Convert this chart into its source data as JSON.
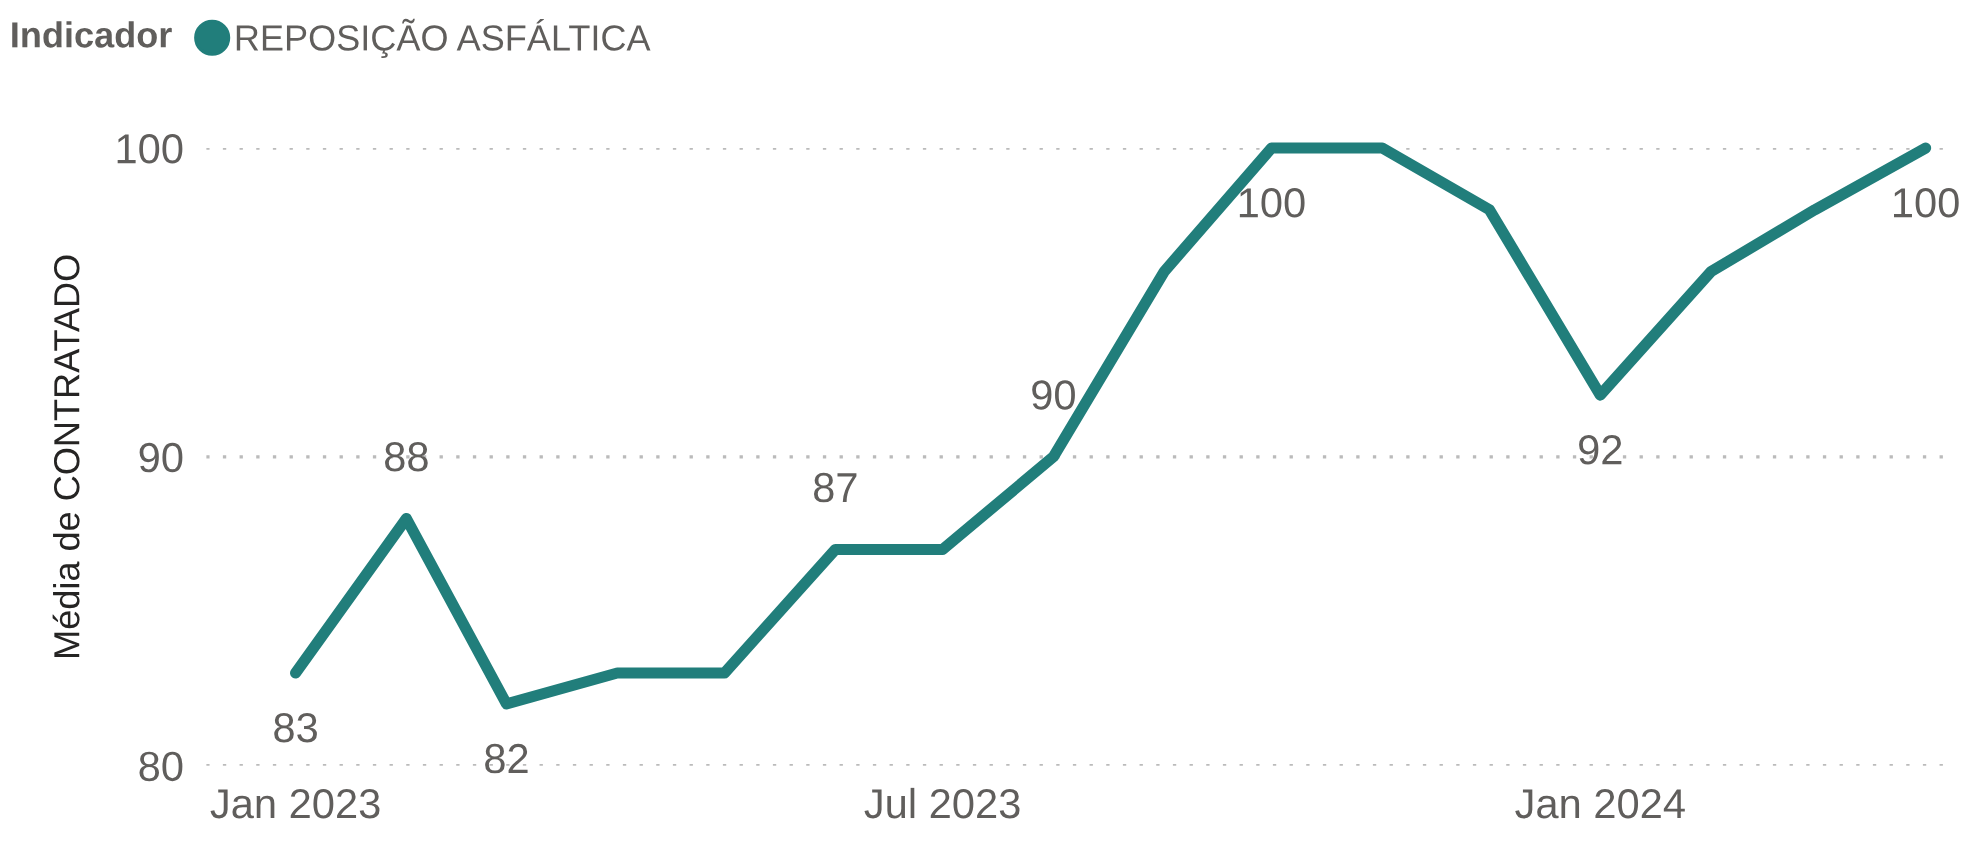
{
  "chart_data": {
    "type": "line",
    "ylabel": "Média de CONTRATADO",
    "legend_title": "Indicador",
    "legend": "top left",
    "grid": "y",
    "line_style": "solid",
    "marker": "none",
    "x": [
      "2023-01",
      "2023-02",
      "2023-03",
      "2023-04",
      "2023-05",
      "2023-06",
      "2023-07",
      "2023-08",
      "2023-09",
      "2023-10",
      "2023-11",
      "2023-12",
      "2024-01",
      "2024-02",
      "2024-03",
      "2024-04"
    ],
    "series": [
      {
        "name": "REPOSIÇÃO ASFÁLTICA",
        "color": "#217e7b",
        "values": [
          83,
          88,
          82,
          83,
          83,
          87,
          87,
          90,
          96,
          100,
          100,
          98,
          92,
          96,
          98,
          100
        ],
        "value_labels": [
          "83",
          "88",
          "82",
          null,
          null,
          "87",
          null,
          "90",
          null,
          "100",
          null,
          null,
          "92",
          null,
          null,
          "100"
        ]
      }
    ],
    "xlim": [
      "2022-12-07",
      "2024-04-09"
    ],
    "xticks": [
      {
        "value": "2023-01",
        "label": "Jan 2023"
      },
      {
        "value": "2023-07",
        "label": "Jul 2023"
      },
      {
        "value": "2024-01",
        "label": "Jan 2024"
      }
    ],
    "ylim": [
      80,
      100
    ],
    "yticks": [
      80,
      90,
      100
    ]
  }
}
